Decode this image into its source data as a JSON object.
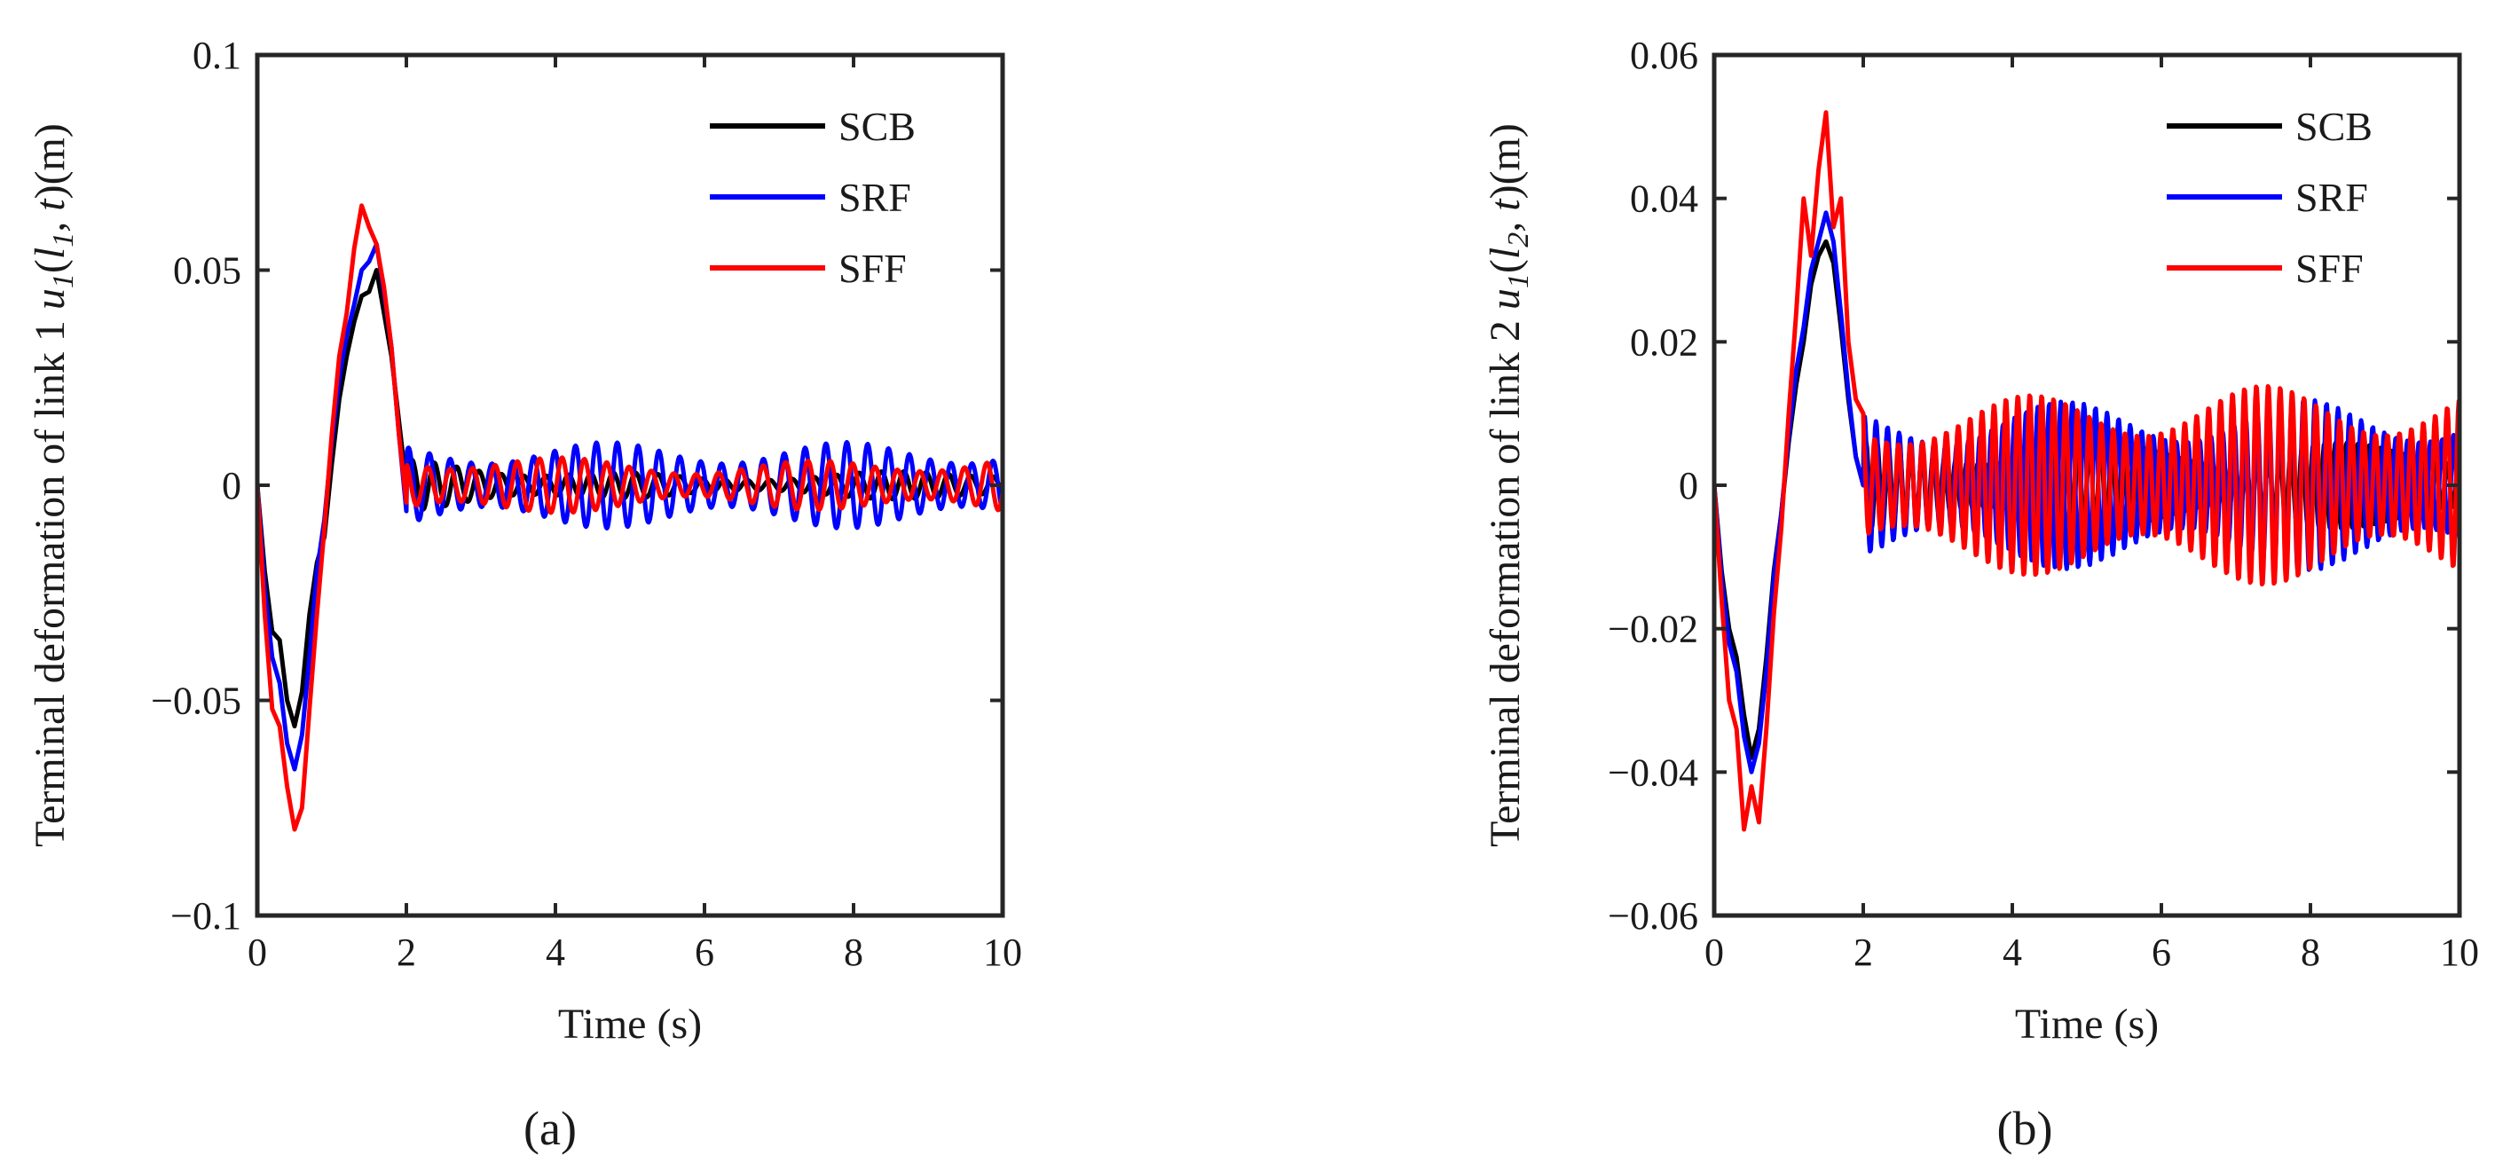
{
  "figure": {
    "panel_labels": [
      "(a)",
      "(b)"
    ]
  },
  "colors": {
    "SCB": "#000000",
    "SRF": "#0000ff",
    "SFF": "#ff0000",
    "axis": "#262626"
  },
  "chart_data": [
    {
      "type": "line",
      "panel": "(a)",
      "xlabel": "Time (s)",
      "ylabel_prefix": "Terminal deformation of link 1 ",
      "ylabel_var": "u",
      "ylabel_sub": "1",
      "ylabel_arg_open": "(",
      "ylabel_arg_l": "l",
      "ylabel_arg_l_sub": "1",
      "ylabel_arg_rest": ", t",
      "ylabel_unit": ")(m)",
      "xlim": [
        0,
        10
      ],
      "ylim": [
        -0.1,
        0.1
      ],
      "xticks": [
        0,
        2,
        4,
        6,
        8,
        10
      ],
      "xtick_labels": [
        "0",
        "2",
        "4",
        "6",
        "8",
        "10"
      ],
      "yticks": [
        -0.1,
        -0.05,
        0,
        0.05,
        0.1
      ],
      "ytick_labels": [
        "−0.1",
        "−0.05",
        "0",
        "0.05",
        "0.1"
      ],
      "legend_position": "top-right",
      "series": [
        {
          "name": "SCB",
          "transient": [
            [
              0,
              0
            ],
            [
              0.1,
              -0.02
            ],
            [
              0.2,
              -0.034
            ],
            [
              0.3,
              -0.036
            ],
            [
              0.4,
              -0.05
            ],
            [
              0.5,
              -0.056
            ],
            [
              0.6,
              -0.048
            ],
            [
              0.7,
              -0.03
            ],
            [
              0.8,
              -0.018
            ],
            [
              0.9,
              -0.012
            ],
            [
              1.0,
              0.005
            ],
            [
              1.1,
              0.02
            ],
            [
              1.2,
              0.03
            ],
            [
              1.3,
              0.038
            ],
            [
              1.4,
              0.044
            ],
            [
              1.5,
              0.045
            ],
            [
              1.6,
              0.05
            ],
            [
              1.7,
              0.04
            ],
            [
              1.8,
              0.03
            ],
            [
              1.9,
              0.015
            ],
            [
              2.0,
              0.0
            ]
          ],
          "osc_amp_start": 0.006,
          "osc_amp_mid": 0.002,
          "osc_amp_end": 0.004,
          "osc_period": 0.3
        },
        {
          "name": "SRF",
          "transient": [
            [
              0,
              0
            ],
            [
              0.1,
              -0.024
            ],
            [
              0.2,
              -0.04
            ],
            [
              0.3,
              -0.046
            ],
            [
              0.4,
              -0.06
            ],
            [
              0.5,
              -0.066
            ],
            [
              0.6,
              -0.058
            ],
            [
              0.7,
              -0.04
            ],
            [
              0.8,
              -0.02
            ],
            [
              0.9,
              -0.008
            ],
            [
              1.0,
              0.01
            ],
            [
              1.1,
              0.025
            ],
            [
              1.2,
              0.035
            ],
            [
              1.3,
              0.042
            ],
            [
              1.4,
              0.05
            ],
            [
              1.5,
              0.052
            ],
            [
              1.6,
              0.056
            ],
            [
              1.7,
              0.045
            ],
            [
              1.8,
              0.032
            ],
            [
              1.9,
              0.012
            ],
            [
              2.0,
              -0.006
            ]
          ],
          "osc_amp_start": 0.01,
          "osc_amp_mid": 0.01,
          "osc_amp_end": 0.01,
          "osc_period": 0.28
        },
        {
          "name": "SFF",
          "transient": [
            [
              0,
              0
            ],
            [
              0.1,
              -0.03
            ],
            [
              0.2,
              -0.052
            ],
            [
              0.3,
              -0.056
            ],
            [
              0.4,
              -0.07
            ],
            [
              0.5,
              -0.08
            ],
            [
              0.6,
              -0.075
            ],
            [
              0.7,
              -0.052
            ],
            [
              0.8,
              -0.03
            ],
            [
              0.9,
              -0.01
            ],
            [
              1.0,
              0.012
            ],
            [
              1.1,
              0.03
            ],
            [
              1.2,
              0.04
            ],
            [
              1.3,
              0.055
            ],
            [
              1.4,
              0.065
            ],
            [
              1.5,
              0.06
            ],
            [
              1.6,
              0.056
            ],
            [
              1.7,
              0.046
            ],
            [
              1.8,
              0.032
            ],
            [
              1.9,
              0.012
            ],
            [
              2.0,
              -0.004
            ]
          ],
          "osc_amp_start": 0.008,
          "osc_amp_mid": 0.005,
          "osc_amp_end": 0.007,
          "osc_period": 0.3
        }
      ]
    },
    {
      "type": "line",
      "panel": "(b)",
      "xlabel": "Time (s)",
      "ylabel_prefix": "Terminal deformation of link 2 ",
      "ylabel_var": "u",
      "ylabel_sub": "1",
      "ylabel_arg_open": "(",
      "ylabel_arg_l": "l",
      "ylabel_arg_l_sub": "2",
      "ylabel_arg_rest": ", t",
      "ylabel_unit": ")(m)",
      "xlim": [
        0,
        10
      ],
      "ylim": [
        -0.06,
        0.06
      ],
      "xticks": [
        0,
        2,
        4,
        6,
        8,
        10
      ],
      "xtick_labels": [
        "0",
        "2",
        "4",
        "6",
        "8",
        "10"
      ],
      "yticks": [
        -0.06,
        -0.04,
        -0.02,
        0,
        0.02,
        0.04,
        0.06
      ],
      "ytick_labels": [
        "−0.06",
        "−0.04",
        "−0.02",
        "0",
        "0.02",
        "0.04",
        "0.06"
      ],
      "legend_position": "top-right",
      "series": [
        {
          "name": "SCB",
          "transient": [
            [
              0,
              0
            ],
            [
              0.1,
              -0.012
            ],
            [
              0.2,
              -0.02
            ],
            [
              0.3,
              -0.024
            ],
            [
              0.4,
              -0.032
            ],
            [
              0.5,
              -0.038
            ],
            [
              0.6,
              -0.034
            ],
            [
              0.7,
              -0.024
            ],
            [
              0.8,
              -0.012
            ],
            [
              0.9,
              -0.004
            ],
            [
              1.0,
              0.006
            ],
            [
              1.1,
              0.014
            ],
            [
              1.2,
              0.02
            ],
            [
              1.3,
              0.028
            ],
            [
              1.4,
              0.032
            ],
            [
              1.5,
              0.034
            ],
            [
              1.6,
              0.031
            ],
            [
              1.7,
              0.022
            ],
            [
              1.8,
              0.012
            ],
            [
              1.9,
              0.004
            ],
            [
              2.0,
              0.0
            ]
          ],
          "osc_amp_start": 0.006,
          "osc_amp_mid": 0.006,
          "osc_amp_end": 0.006,
          "osc_period": 0.15
        },
        {
          "name": "SRF",
          "transient": [
            [
              0,
              0
            ],
            [
              0.1,
              -0.013
            ],
            [
              0.2,
              -0.022
            ],
            [
              0.3,
              -0.026
            ],
            [
              0.4,
              -0.035
            ],
            [
              0.5,
              -0.04
            ],
            [
              0.6,
              -0.036
            ],
            [
              0.7,
              -0.026
            ],
            [
              0.8,
              -0.013
            ],
            [
              0.9,
              -0.004
            ],
            [
              1.0,
              0.007
            ],
            [
              1.1,
              0.016
            ],
            [
              1.2,
              0.022
            ],
            [
              1.3,
              0.03
            ],
            [
              1.4,
              0.034
            ],
            [
              1.5,
              0.038
            ],
            [
              1.6,
              0.034
            ],
            [
              1.7,
              0.024
            ],
            [
              1.8,
              0.013
            ],
            [
              1.9,
              0.004
            ],
            [
              2.0,
              0.0
            ]
          ],
          "osc_amp_start": 0.011,
          "osc_amp_mid": 0.012,
          "osc_amp_end": 0.012,
          "osc_period": 0.155
        },
        {
          "name": "SFF",
          "transient": [
            [
              0,
              0
            ],
            [
              0.1,
              -0.016
            ],
            [
              0.2,
              -0.03
            ],
            [
              0.3,
              -0.034
            ],
            [
              0.4,
              -0.048
            ],
            [
              0.5,
              -0.042
            ],
            [
              0.6,
              -0.047
            ],
            [
              0.7,
              -0.034
            ],
            [
              0.8,
              -0.018
            ],
            [
              0.9,
              -0.006
            ],
            [
              1.0,
              0.01
            ],
            [
              1.1,
              0.024
            ],
            [
              1.2,
              0.04
            ],
            [
              1.3,
              0.032
            ],
            [
              1.4,
              0.044
            ],
            [
              1.5,
              0.052
            ],
            [
              1.6,
              0.036
            ],
            [
              1.7,
              0.04
            ],
            [
              1.8,
              0.02
            ],
            [
              1.9,
              0.012
            ],
            [
              2.0,
              0.01
            ]
          ],
          "osc_amp_start": 0.011,
          "osc_amp_mid": 0.014,
          "osc_amp_end": 0.014,
          "osc_period": 0.16
        }
      ]
    }
  ]
}
